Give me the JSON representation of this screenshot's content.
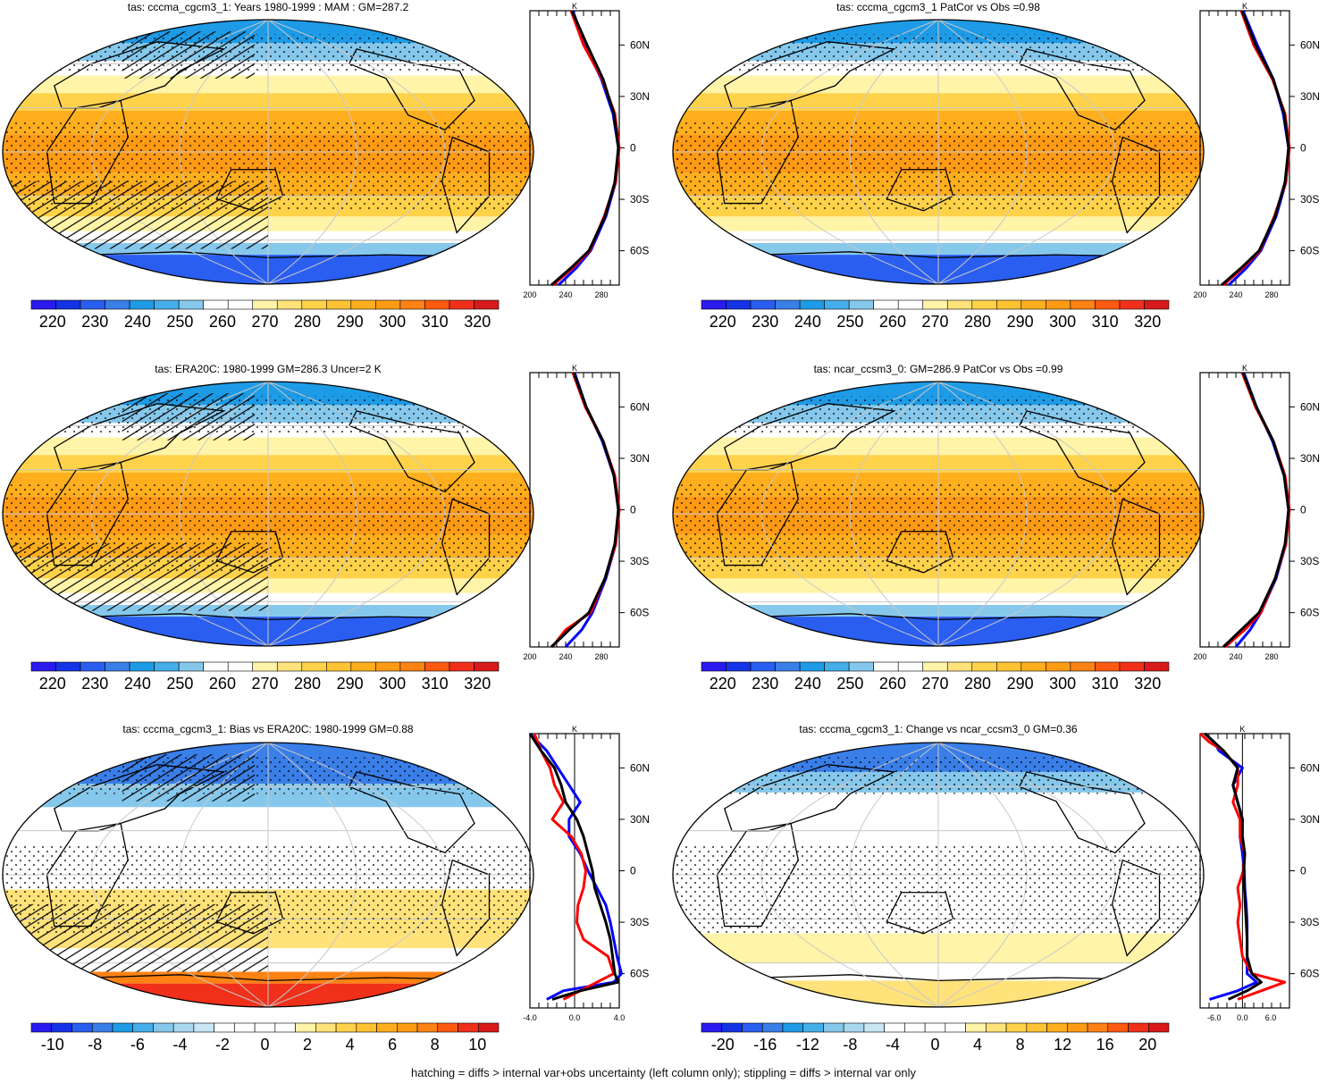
{
  "footnote": "hatching = diffs > internal var+obs uncertainty (left column only); stippling = diffs > internal var only",
  "chart_data": [
    {
      "type": "heatmap",
      "title": "tas: cccma_cgcm3_1: Years 1980-1999 : MAM : GM=287.2",
      "map_kind": "abs",
      "hatch": true,
      "colorbar": {
        "levels": [
          220,
          230,
          240,
          250,
          260,
          270,
          280,
          290,
          300,
          310,
          320
        ],
        "labels": [
          "220",
          "230",
          "240",
          "250",
          "260",
          "270",
          "280",
          "290",
          "300",
          "310",
          "320"
        ]
      },
      "profile": {
        "xlabel": "K",
        "xlim": [
          200,
          300
        ],
        "xticks": [
          "200",
          "240",
          "280"
        ],
        "xtick_values": [
          200,
          240,
          280
        ],
        "yticks": [
          "60N",
          "30N",
          "0",
          "30S",
          "60S"
        ],
        "ytick_values": [
          60,
          30,
          0,
          -30,
          -60
        ],
        "series": [
          {
            "color": "#0000ff",
            "lat": [
              80,
              60,
              40,
              20,
              0,
              -20,
              -40,
              -60,
              -70,
              -80
            ],
            "values": [
              248,
              262,
              280,
              293,
              299,
              296,
              285,
              268,
              252,
              232
            ]
          },
          {
            "color": "#ff0000",
            "lat": [
              80,
              60,
              40,
              20,
              0,
              -20,
              -40,
              -60,
              -70,
              -80
            ],
            "values": [
              246,
              260,
              281,
              295,
              300,
              296,
              283,
              267,
              248,
              226
            ]
          },
          {
            "color": "#000000",
            "lat": [
              80,
              60,
              40,
              20,
              0,
              -20,
              -40,
              -60,
              -70,
              -80
            ],
            "values": [
              247,
              264,
              282,
              294,
              299,
              295,
              284,
              266,
              246,
              224
            ]
          }
        ]
      }
    },
    {
      "type": "heatmap",
      "title": "tas: cccma_cgcm3_1 PatCor vs Obs =0.98",
      "map_kind": "abs",
      "hatch": false,
      "colorbar": {
        "levels": [
          220,
          230,
          240,
          250,
          260,
          270,
          280,
          290,
          300,
          310,
          320
        ],
        "labels": [
          "220",
          "230",
          "240",
          "250",
          "260",
          "270",
          "280",
          "290",
          "300",
          "310",
          "320"
        ]
      },
      "profile": {
        "xlabel": "K",
        "xlim": [
          200,
          300
        ],
        "xticks": [
          "200",
          "240",
          "280"
        ],
        "xtick_values": [
          200,
          240,
          280
        ],
        "yticks": [
          "60N",
          "30N",
          "0",
          "30S",
          "60S"
        ],
        "ytick_values": [
          60,
          30,
          0,
          -30,
          -60
        ],
        "series": [
          {
            "color": "#0000ff",
            "lat": [
              80,
              60,
              40,
              20,
              0,
              -20,
              -40,
              -60,
              -70,
              -80
            ],
            "values": [
              248,
              264,
              282,
              293,
              299,
              296,
              285,
              268,
              252,
              232
            ]
          },
          {
            "color": "#ff0000",
            "lat": [
              80,
              60,
              40,
              20,
              0,
              -20,
              -40,
              -60,
              -70,
              -80
            ],
            "values": [
              246,
              260,
              281,
              295,
              300,
              296,
              283,
              267,
              248,
              226
            ]
          },
          {
            "color": "#000000",
            "lat": [
              80,
              60,
              40,
              20,
              0,
              -20,
              -40,
              -60,
              -70,
              -80
            ],
            "values": [
              247,
              262,
              282,
              294,
              299,
              295,
              284,
              266,
              246,
              224
            ]
          }
        ]
      }
    },
    {
      "type": "heatmap",
      "title": "tas: ERA20C: 1980-1999 GM=286.3 Uncer=2 K",
      "map_kind": "abs",
      "hatch": true,
      "colorbar": {
        "levels": [
          220,
          230,
          240,
          250,
          260,
          270,
          280,
          290,
          300,
          310,
          320
        ],
        "labels": [
          "220",
          "230",
          "240",
          "250",
          "260",
          "270",
          "280",
          "290",
          "300",
          "310",
          "320"
        ]
      },
      "profile": {
        "xlabel": "K",
        "xlim": [
          200,
          300
        ],
        "xticks": [
          "200",
          "240",
          "280"
        ],
        "xtick_values": [
          200,
          240,
          280
        ],
        "yticks": [
          "60N",
          "30N",
          "0",
          "30S",
          "60S"
        ],
        "ytick_values": [
          60,
          30,
          0,
          -30,
          -60
        ],
        "series": [
          {
            "color": "#0000ff",
            "lat": [
              80,
              60,
              40,
              20,
              0,
              -20,
              -40,
              -60,
              -70,
              -80
            ],
            "values": [
              250,
              263,
              281,
              294,
              299,
              296,
              285,
              270,
              258,
              240
            ]
          },
          {
            "color": "#ff0000",
            "lat": [
              80,
              60,
              40,
              20,
              0,
              -20,
              -40,
              -60,
              -70,
              -80
            ],
            "values": [
              248,
              262,
              282,
              295,
              300,
              296,
              284,
              268,
              240,
              225
            ]
          },
          {
            "color": "#000000",
            "lat": [
              80,
              60,
              40,
              20,
              0,
              -20,
              -40,
              -60,
              -70,
              -80
            ],
            "values": [
              249,
              263,
              282,
              294,
              299,
              295,
              284,
              266,
              244,
              224
            ]
          }
        ]
      }
    },
    {
      "type": "heatmap",
      "title": "tas: ncar_ccsm3_0: GM=286.9 PatCor vs Obs =0.99",
      "map_kind": "abs",
      "hatch": false,
      "colorbar": {
        "levels": [
          220,
          230,
          240,
          250,
          260,
          270,
          280,
          290,
          300,
          310,
          320
        ],
        "labels": [
          "220",
          "230",
          "240",
          "250",
          "260",
          "270",
          "280",
          "290",
          "300",
          "310",
          "320"
        ]
      },
      "profile": {
        "xlabel": "K",
        "xlim": [
          200,
          300
        ],
        "xticks": [
          "200",
          "240",
          "280"
        ],
        "xtick_values": [
          200,
          240,
          280
        ],
        "yticks": [
          "60N",
          "30N",
          "0",
          "30S",
          "60S"
        ],
        "ytick_values": [
          60,
          30,
          0,
          -30,
          -60
        ],
        "series": [
          {
            "color": "#0000ff",
            "lat": [
              80,
              60,
              40,
              20,
              0,
              -20,
              -40,
              -60,
              -70,
              -80
            ],
            "values": [
              249,
              263,
              281,
              294,
              299,
              296,
              285,
              268,
              256,
              240
            ]
          },
          {
            "color": "#ff0000",
            "lat": [
              80,
              60,
              40,
              20,
              0,
              -20,
              -40,
              -60,
              -70,
              -80
            ],
            "values": [
              247,
              262,
              282,
              295,
              300,
              296,
              284,
              268,
              250,
              228
            ]
          },
          {
            "color": "#000000",
            "lat": [
              80,
              60,
              40,
              20,
              0,
              -20,
              -40,
              -60,
              -70,
              -80
            ],
            "values": [
              248,
              263,
              282,
              294,
              299,
              295,
              284,
              266,
              246,
              226
            ]
          }
        ]
      }
    },
    {
      "type": "heatmap",
      "title": "tas: cccma_cgcm3_1: Bias vs ERA20C: 1980-1999 GM=0.88",
      "map_kind": "bias",
      "hatch": true,
      "colorbar": {
        "levels": [
          -11,
          -10,
          -9,
          -8,
          -7,
          -6,
          -5,
          -4,
          -3,
          -2,
          -1,
          0,
          1,
          2,
          3,
          4,
          5,
          6,
          7,
          8,
          9,
          10,
          11
        ],
        "labels": [
          "-10",
          "-8",
          "-6",
          "-4",
          "-2",
          "0",
          "2",
          "4",
          "6",
          "8",
          "10"
        ],
        "label_values": [
          -10,
          -8,
          -6,
          -4,
          -2,
          0,
          2,
          4,
          6,
          8,
          10
        ]
      },
      "profile": {
        "xlabel": "K",
        "xlim": [
          -4,
          4
        ],
        "xticks": [
          "-4.0",
          "0.0",
          "4.0"
        ],
        "xtick_values": [
          -4,
          0,
          4
        ],
        "yticks": [
          "60N",
          "30N",
          "0",
          "30S",
          "60S"
        ],
        "ytick_values": [
          60,
          30,
          0,
          -30,
          -60
        ],
        "series": [
          {
            "color": "#0000ff",
            "lat": [
              80,
              70,
              60,
              50,
              40,
              30,
              20,
              10,
              0,
              -10,
              -20,
              -30,
              -40,
              -50,
              -60,
              -65,
              -70,
              -75
            ],
            "values": [
              -4,
              -2.5,
              -1.5,
              -0.5,
              0.5,
              -0.5,
              -0.5,
              0.5,
              1.2,
              2.0,
              2.8,
              3.2,
              3.5,
              3.8,
              4.2,
              3.5,
              -1,
              -2.5
            ]
          },
          {
            "color": "#ff0000",
            "lat": [
              80,
              70,
              60,
              50,
              40,
              30,
              20,
              10,
              0,
              -10,
              -20,
              -30,
              -40,
              -50,
              -60,
              -65,
              -70,
              -75
            ],
            "values": [
              -3.6,
              -3.0,
              -2.2,
              -1.8,
              -1.0,
              -2.0,
              -0.3,
              0.6,
              1.0,
              0.8,
              0.3,
              0.2,
              0.8,
              3.0,
              3.5,
              2.0,
              0.5,
              -1.0
            ]
          },
          {
            "color": "#000000",
            "lat": [
              80,
              70,
              60,
              50,
              40,
              30,
              20,
              10,
              0,
              -10,
              -20,
              -30,
              -40,
              -50,
              -60,
              -65,
              -70,
              -75
            ],
            "values": [
              -4,
              -3.0,
              -1.8,
              -1.2,
              -0.8,
              0.2,
              0.8,
              1.2,
              1.6,
              1.8,
              2.3,
              2.8,
              3.2,
              3.4,
              3.6,
              3.9,
              0.5,
              -2.0
            ]
          }
        ]
      }
    },
    {
      "type": "heatmap",
      "title": "tas: cccma_cgcm3_1: Change vs ncar_ccsm3_0 GM=0.36",
      "map_kind": "change",
      "hatch": false,
      "colorbar": {
        "levels": [
          -22,
          -20,
          -18,
          -16,
          -14,
          -12,
          -10,
          -8,
          -6,
          -4,
          -2,
          0,
          2,
          4,
          6,
          8,
          10,
          12,
          14,
          16,
          18,
          20,
          22
        ],
        "labels": [
          "-20",
          "-16",
          "-12",
          "-8",
          "-4",
          "0",
          "4",
          "8",
          "12",
          "16",
          "20"
        ],
        "label_values": [
          -20,
          -16,
          -12,
          -8,
          -4,
          0,
          4,
          8,
          12,
          16,
          20
        ]
      },
      "profile": {
        "xlabel": "K",
        "xlim": [
          -9,
          10
        ],
        "xticks": [
          "-6.0",
          "0.0",
          "6.0"
        ],
        "xtick_values": [
          -6,
          0,
          6
        ],
        "yticks": [
          "60N",
          "30N",
          "0",
          "30S",
          "60S"
        ],
        "ytick_values": [
          60,
          30,
          0,
          -30,
          -60
        ],
        "series": [
          {
            "color": "#0000ff",
            "lat": [
              80,
              75,
              70,
              60,
              50,
              40,
              30,
              20,
              10,
              0,
              -10,
              -20,
              -30,
              -40,
              -50,
              -60,
              -65,
              -70,
              -75
            ],
            "values": [
              -8,
              -6,
              -5,
              0,
              -2,
              -1,
              0,
              -0.5,
              0,
              0.4,
              0.5,
              0.8,
              1.0,
              1.0,
              1.0,
              1.0,
              3.0,
              -1,
              -7
            ]
          },
          {
            "color": "#ff0000",
            "lat": [
              80,
              75,
              70,
              60,
              50,
              40,
              30,
              20,
              10,
              0,
              -10,
              -20,
              -30,
              -40,
              -50,
              -60,
              -65,
              -70,
              -75
            ],
            "values": [
              -9,
              -7,
              -4,
              -1,
              -1,
              -2,
              -0.5,
              -0.5,
              0.5,
              0.2,
              -1.0,
              -0.5,
              -1.0,
              -0.5,
              0,
              2.0,
              9.0,
              4.0,
              -1
            ]
          },
          {
            "color": "#000000",
            "lat": [
              80,
              75,
              70,
              60,
              50,
              40,
              30,
              20,
              10,
              0,
              -10,
              -20,
              -30,
              -40,
              -50,
              -60,
              -65,
              -70,
              -75
            ],
            "values": [
              -8,
              -6,
              -4,
              -1,
              -2,
              -1,
              0,
              0,
              0.5,
              0.3,
              0.4,
              0.6,
              0.8,
              1.0,
              1.0,
              2.0,
              4.0,
              1.0,
              -3
            ]
          }
        ]
      }
    }
  ]
}
